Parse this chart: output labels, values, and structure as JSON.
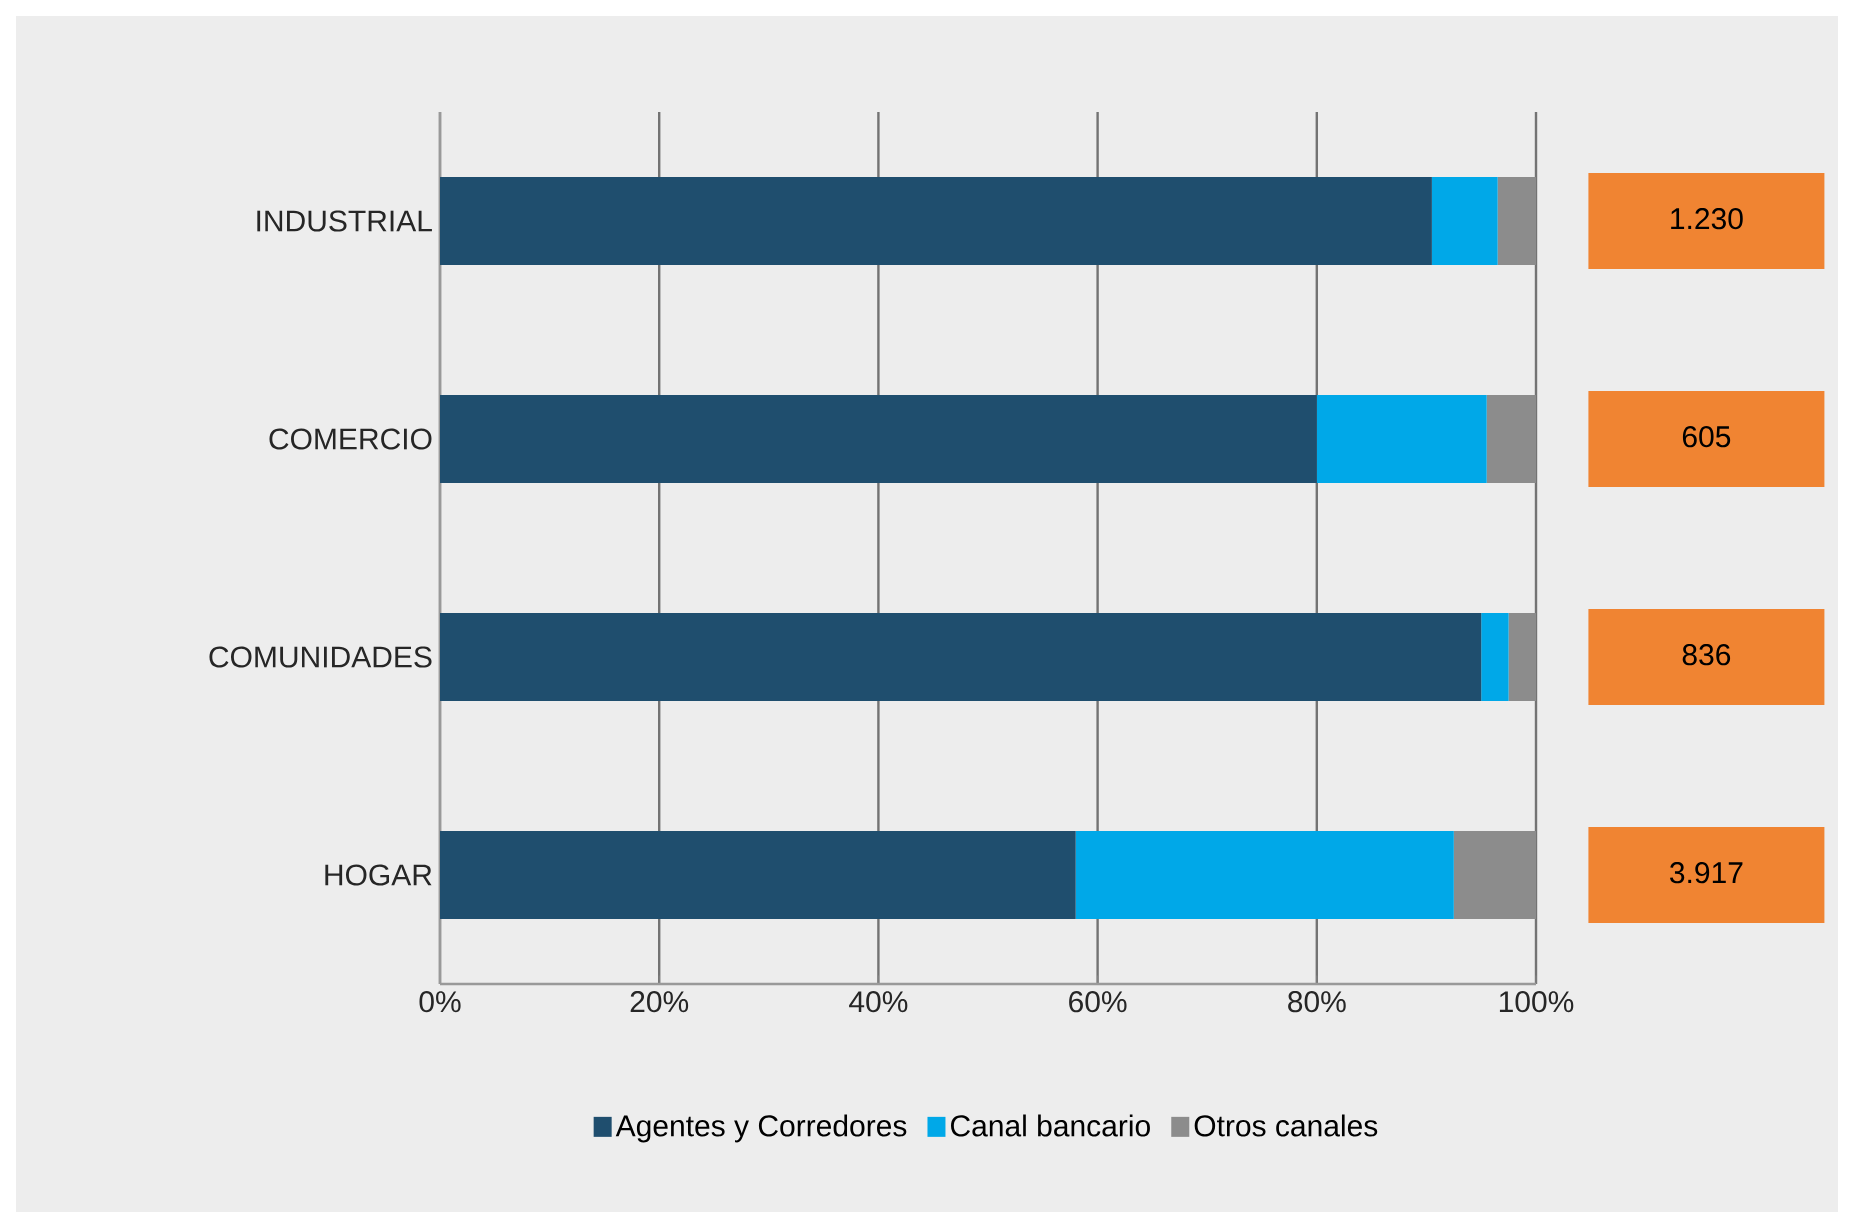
{
  "chart_data": {
    "type": "bar",
    "orientation": "horizontal",
    "stacked": true,
    "categories": [
      "INDUSTRIAL",
      "COMERCIO",
      "COMUNIDADES",
      "HOGAR"
    ],
    "series": [
      {
        "name": "Agentes y Corredores",
        "color": "#1f4e6e",
        "values": [
          90.5,
          80,
          95,
          58
        ]
      },
      {
        "name": "Canal bancario",
        "color": "#00a8e8",
        "values": [
          6,
          15.5,
          2.5,
          34.5
        ]
      },
      {
        "name": "Otros canales",
        "color": "#8c8c8c",
        "values": [
          3.5,
          4.5,
          2.5,
          7.5
        ]
      }
    ],
    "xlim": [
      0,
      100
    ],
    "xticks": [
      {
        "value": 0,
        "label": "0%"
      },
      {
        "value": 20,
        "label": "20%"
      },
      {
        "value": 40,
        "label": "40%"
      },
      {
        "value": 60,
        "label": "60%"
      },
      {
        "value": 80,
        "label": "80%"
      },
      {
        "value": 100,
        "label": "100%"
      }
    ],
    "annotations": [
      "1.230",
      "605",
      "836",
      "3.917"
    ],
    "grid": "x",
    "legend": "bottom"
  }
}
